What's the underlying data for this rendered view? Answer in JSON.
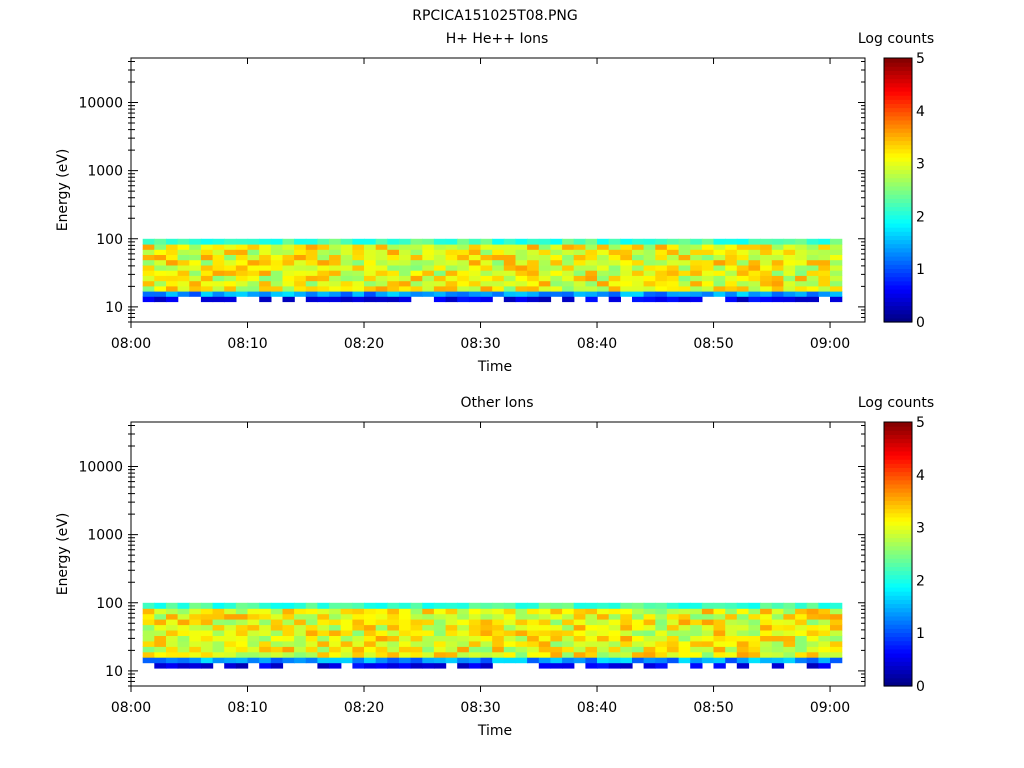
{
  "figure": {
    "title": "RPCICA151025T08.PNG"
  },
  "chart_data": [
    {
      "type": "heatmap",
      "title": "H+ He++ Ions",
      "xlabel": "Time",
      "ylabel": "Energy (eV)",
      "x_tick_labels": [
        "08:00",
        "08:10",
        "08:20",
        "08:30",
        "08:40",
        "08:50",
        "09:00"
      ],
      "y_tick_labels": [
        "10",
        "100",
        "1000",
        "10000"
      ],
      "y_scale": "log",
      "xlim": [
        "08:00",
        "09:03"
      ],
      "ylim": [
        6,
        45000
      ],
      "data_coverage": {
        "x_start": "08:01",
        "x_end": "09:01",
        "energy_min_ev": 12,
        "energy_max_ev": 100
      },
      "colorbar": {
        "label": "Log counts",
        "range": [
          0,
          5
        ],
        "ticks": [
          "0",
          "1",
          "2",
          "3",
          "4",
          "5"
        ],
        "colormap": "jet"
      }
    },
    {
      "type": "heatmap",
      "title": "Other Ions",
      "xlabel": "Time",
      "ylabel": "Energy (eV)",
      "x_tick_labels": [
        "08:00",
        "08:10",
        "08:20",
        "08:30",
        "08:40",
        "08:50",
        "09:00"
      ],
      "y_tick_labels": [
        "10",
        "100",
        "1000",
        "10000"
      ],
      "y_scale": "log",
      "xlim": [
        "08:00",
        "09:03"
      ],
      "ylim": [
        6,
        45000
      ],
      "data_coverage": {
        "x_start": "08:01",
        "x_end": "09:01",
        "energy_min_ev": 11,
        "energy_max_ev": 100
      },
      "colorbar": {
        "label": "Log counts",
        "range": [
          0,
          5
        ],
        "ticks": [
          "0",
          "1",
          "2",
          "3",
          "4",
          "5"
        ],
        "colormap": "jet"
      }
    }
  ]
}
